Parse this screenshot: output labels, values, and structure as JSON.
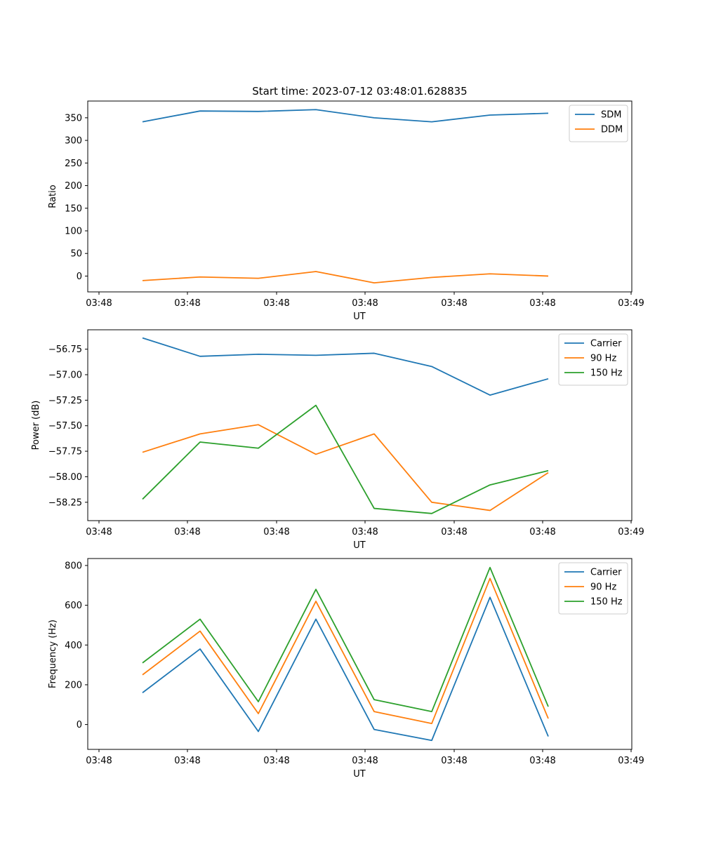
{
  "chart_data": [
    {
      "type": "line",
      "title": "Start time: 2023-07-12 03:48:01.628835",
      "xlabel": "UT",
      "ylabel": "Ratio",
      "ylim": [
        -35,
        387
      ],
      "yticks": [
        0,
        50,
        100,
        150,
        200,
        250,
        300,
        350
      ],
      "ytick_labels": [
        "0",
        "50",
        "100",
        "150",
        "200",
        "250",
        "300",
        "350"
      ],
      "xtick_labels": [
        "03:48",
        "03:48",
        "03:48",
        "03:48",
        "03:48",
        "03:48",
        "03:49"
      ],
      "legend": "top-right",
      "series": [
        {
          "name": "SDM",
          "color": "#1f77b4",
          "values": [
            341,
            365,
            364,
            368,
            350,
            341,
            356,
            360
          ]
        },
        {
          "name": "DDM",
          "color": "#ff7f0e",
          "values": [
            -10,
            -2,
            -5,
            10,
            -15,
            -3,
            5,
            0
          ]
        }
      ]
    },
    {
      "type": "line",
      "title": "",
      "xlabel": "UT",
      "ylabel": "Power (dB)",
      "ylim": [
        -58.43,
        -56.56
      ],
      "yticks": [
        -58.25,
        -58.0,
        -57.75,
        -57.5,
        -57.25,
        -57.0,
        -56.75
      ],
      "ytick_labels": [
        "−58.25",
        "−58.00",
        "−57.75",
        "−57.50",
        "−57.25",
        "−57.00",
        "−56.75"
      ],
      "xtick_labels": [
        "03:48",
        "03:48",
        "03:48",
        "03:48",
        "03:48",
        "03:48",
        "03:49"
      ],
      "legend": "top-right",
      "series": [
        {
          "name": "Carrier",
          "color": "#1f77b4",
          "values": [
            -56.64,
            -56.82,
            -56.8,
            -56.81,
            -56.79,
            -56.92,
            -57.2,
            -57.04
          ]
        },
        {
          "name": "90 Hz",
          "color": "#ff7f0e",
          "values": [
            -57.76,
            -57.58,
            -57.49,
            -57.78,
            -57.58,
            -58.25,
            -58.33,
            -57.96
          ]
        },
        {
          "name": "150 Hz",
          "color": "#2ca02c",
          "values": [
            -58.22,
            -57.66,
            -57.72,
            -57.3,
            -58.31,
            -58.36,
            -58.08,
            -57.94
          ]
        }
      ]
    },
    {
      "type": "line",
      "title": "",
      "xlabel": "UT",
      "ylabel": "Frequency (Hz)",
      "ylim": [
        -125,
        835
      ],
      "yticks": [
        0,
        200,
        400,
        600,
        800
      ],
      "ytick_labels": [
        "0",
        "200",
        "400",
        "600",
        "800"
      ],
      "xtick_labels": [
        "03:48",
        "03:48",
        "03:48",
        "03:48",
        "03:48",
        "03:48",
        "03:49"
      ],
      "legend": "top-right",
      "series": [
        {
          "name": "Carrier",
          "color": "#1f77b4",
          "values": [
            160,
            380,
            -35,
            530,
            -25,
            -80,
            640,
            -60
          ]
        },
        {
          "name": "90 Hz",
          "color": "#ff7f0e",
          "values": [
            250,
            470,
            55,
            620,
            65,
            5,
            735,
            30
          ]
        },
        {
          "name": "150 Hz",
          "color": "#2ca02c",
          "values": [
            310,
            530,
            115,
            680,
            125,
            65,
            790,
            90
          ]
        }
      ]
    }
  ]
}
